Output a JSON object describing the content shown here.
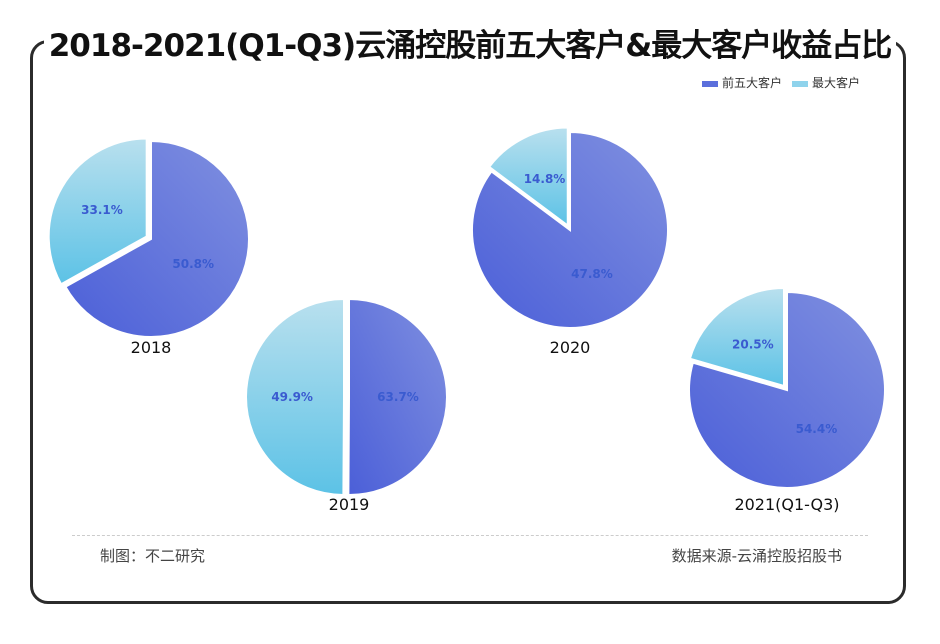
{
  "chart_data": {
    "type": "pie",
    "title": "2018-2021(Q1-Q3)云涌控股前五大客户&最大客户收益占比",
    "legend": {
      "placement": "top-right",
      "entries": [
        "前五大客户",
        "最大客户"
      ]
    },
    "colors": {
      "top5": "#5b6fdc",
      "largest": "#7fcbe8",
      "label": "#3a5bd0"
    },
    "categories": [
      "2018",
      "2019",
      "2020",
      "2021(Q1-Q3)"
    ],
    "series": [
      {
        "name": "前五大客户",
        "values": [
          50.8,
          63.7,
          47.8,
          54.4
        ]
      },
      {
        "name": "最大客户",
        "values": [
          33.1,
          49.9,
          14.8,
          20.5
        ]
      }
    ],
    "labels": {
      "top5": [
        "50.8%",
        "63.7%",
        "47.8%",
        "54.4%"
      ],
      "largest": [
        "33.1%",
        "49.9%",
        "14.8%",
        "20.5%"
      ]
    }
  },
  "footer": {
    "left": "制图：不二研究",
    "right": "数据来源-云涌控股招股书"
  }
}
